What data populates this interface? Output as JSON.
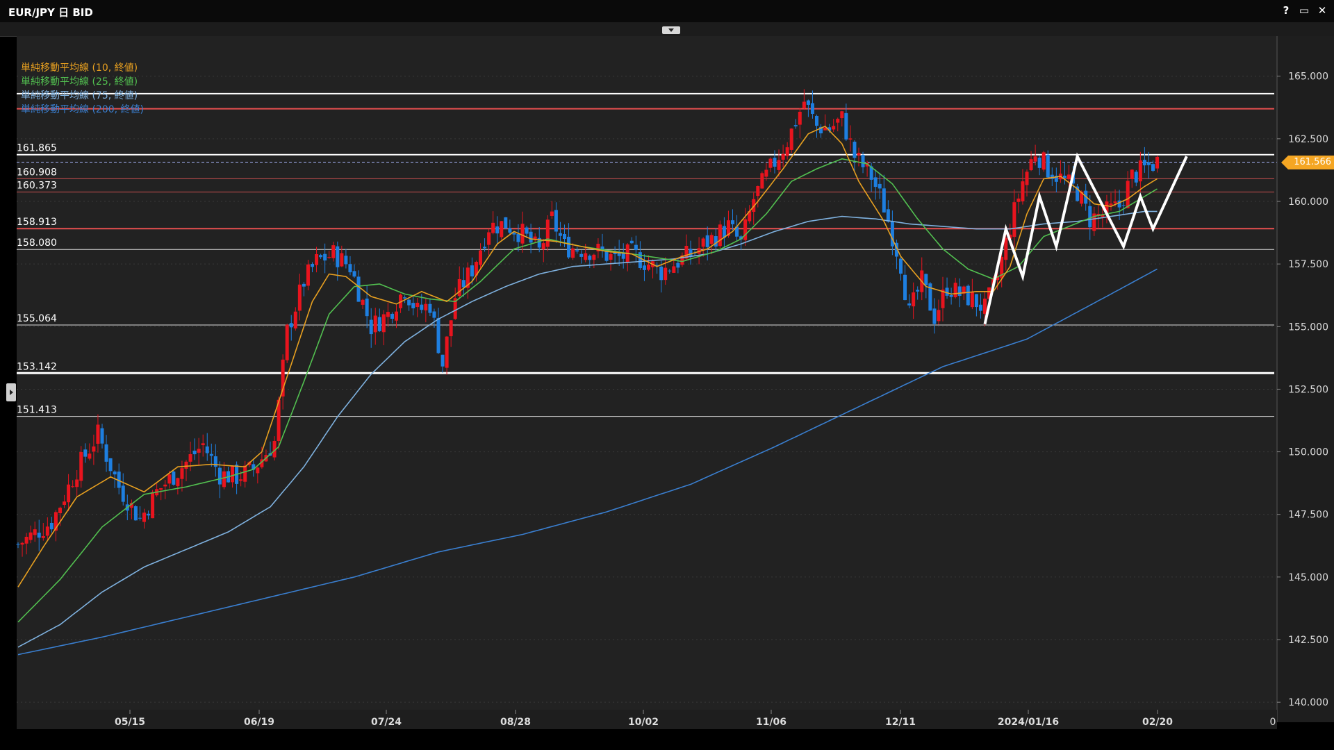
{
  "window": {
    "title": "EUR/JPY 日 BID",
    "help_label": "?",
    "maximize_label": "▭",
    "close_label": "✕"
  },
  "legend": [
    {
      "label": "単純移動平均線 (10, 終値)",
      "color": "#e8a020"
    },
    {
      "label": "単純移動平均線 (25, 終値)",
      "color": "#52c050"
    },
    {
      "label": "単純移動平均線 (75, 終値)",
      "color": "#7fb2e0"
    },
    {
      "label": "単純移動平均線 (200, 終値)",
      "color": "#3a7fd0"
    }
  ],
  "last_price": "161.566",
  "colors": {
    "bg": "#222222",
    "up": "#e8141e",
    "down": "#1e7fe0",
    "ma10": "#e8a020",
    "ma25": "#52c050",
    "ma75": "#7fb2e0",
    "ma200": "#3a7fd0",
    "grid": "#3a3a3a"
  },
  "chart_data": {
    "type": "candlestick",
    "instrument": "EUR/JPY",
    "timeframe": "日",
    "price_type": "BID",
    "ylim": [
      139.7,
      166.6
    ],
    "y_ticks": [
      "140.000",
      "142.500",
      "145.000",
      "147.500",
      "150.000",
      "152.500",
      "155.000",
      "157.500",
      "160.000",
      "162.500",
      "165.000"
    ],
    "x_labels": [
      "05/15",
      "06/19",
      "07/24",
      "08/28",
      "10/02",
      "11/06",
      "12/11",
      "2024/01/16",
      "02/20"
    ],
    "x_axis_extra_label": "0",
    "horizontal_levels": [
      {
        "value": 164.3,
        "label": "",
        "color": "#ffffff",
        "width": 2
      },
      {
        "value": 163.7,
        "label": "",
        "color": "#e85050",
        "width": 2
      },
      {
        "value": 161.865,
        "label": "161.865",
        "color": "#ffffff",
        "width": 2
      },
      {
        "value": 160.908,
        "label": "160.908",
        "color": "#d05050",
        "width": 1
      },
      {
        "value": 160.373,
        "label": "160.373",
        "color": "#d05050",
        "width": 1
      },
      {
        "value": 158.913,
        "label": "158.913",
        "color": "#e85050",
        "width": 2
      },
      {
        "value": 158.08,
        "label": "158.080",
        "color": "#dddddd",
        "width": 1
      },
      {
        "value": 155.064,
        "label": "155.064",
        "color": "#dddddd",
        "width": 1
      },
      {
        "value": 153.142,
        "label": "153.142",
        "color": "#ffffff",
        "width": 3
      },
      {
        "value": 151.413,
        "label": "151.413",
        "color": "#dddddd",
        "width": 1
      }
    ],
    "ohlc_anchors": [
      [
        0,
        146.3
      ],
      [
        8,
        147.2
      ],
      [
        14,
        149.3
      ],
      [
        19,
        150.7
      ],
      [
        24,
        148.6
      ],
      [
        29,
        147.3
      ],
      [
        33,
        148.4
      ],
      [
        39,
        149.4
      ],
      [
        44,
        150.3
      ],
      [
        48,
        149.1
      ],
      [
        52,
        149.0
      ],
      [
        56,
        149.3
      ],
      [
        61,
        150.4
      ],
      [
        64,
        154.8
      ],
      [
        68,
        156.8
      ],
      [
        71,
        157.6
      ],
      [
        75,
        157.9
      ],
      [
        79,
        157.4
      ],
      [
        84,
        155.0
      ],
      [
        88,
        155.5
      ],
      [
        92,
        156.5
      ],
      [
        95,
        155.6
      ],
      [
        98,
        155.9
      ],
      [
        101,
        153.5
      ],
      [
        104,
        156.2
      ],
      [
        108,
        157.3
      ],
      [
        112,
        159.0
      ],
      [
        116,
        159.1
      ],
      [
        120,
        158.7
      ],
      [
        124,
        158.0
      ],
      [
        127,
        159.3
      ],
      [
        130,
        158.2
      ],
      [
        134,
        158.1
      ],
      [
        138,
        158.0
      ],
      [
        142,
        157.7
      ],
      [
        146,
        157.9
      ],
      [
        150,
        157.5
      ],
      [
        153,
        157.2
      ],
      [
        157,
        157.6
      ],
      [
        161,
        158.0
      ],
      [
        165,
        158.5
      ],
      [
        169,
        159.0
      ],
      [
        172,
        158.3
      ],
      [
        175,
        160.1
      ],
      [
        179,
        161.3
      ],
      [
        183,
        162.4
      ],
      [
        187,
        164.0
      ],
      [
        190,
        163.0
      ],
      [
        193,
        162.9
      ],
      [
        196,
        163.3
      ],
      [
        199,
        161.8
      ],
      [
        203,
        161.0
      ],
      [
        206,
        159.8
      ],
      [
        210,
        157.5
      ],
      [
        212,
        155.5
      ],
      [
        215,
        156.8
      ],
      [
        218,
        155.4
      ],
      [
        221,
        156.6
      ],
      [
        224,
        156.3
      ],
      [
        227,
        156.1
      ],
      [
        230,
        155.7
      ],
      [
        233,
        157.0
      ],
      [
        236,
        159.0
      ],
      [
        239,
        160.8
      ],
      [
        242,
        162.0
      ],
      [
        245,
        161.3
      ],
      [
        249,
        160.8
      ],
      [
        252,
        160.4
      ],
      [
        255,
        159.3
      ],
      [
        258,
        159.5
      ],
      [
        262,
        159.8
      ],
      [
        265,
        161.0
      ],
      [
        268,
        161.3
      ],
      [
        271,
        161.6
      ]
    ],
    "ma_anchors": {
      "ma10": [
        [
          0,
          144.6
        ],
        [
          6,
          146.2
        ],
        [
          14,
          148.2
        ],
        [
          22,
          149.0
        ],
        [
          30,
          148.4
        ],
        [
          38,
          149.4
        ],
        [
          46,
          149.5
        ],
        [
          54,
          149.4
        ],
        [
          58,
          150.0
        ],
        [
          64,
          153.0
        ],
        [
          70,
          156.0
        ],
        [
          74,
          157.1
        ],
        [
          78,
          157.0
        ],
        [
          84,
          156.2
        ],
        [
          90,
          155.9
        ],
        [
          96,
          156.4
        ],
        [
          102,
          156.0
        ],
        [
          108,
          156.8
        ],
        [
          114,
          158.3
        ],
        [
          118,
          158.8
        ],
        [
          122,
          158.5
        ],
        [
          128,
          158.4
        ],
        [
          134,
          158.2
        ],
        [
          140,
          158.0
        ],
        [
          146,
          157.9
        ],
        [
          152,
          157.4
        ],
        [
          158,
          157.8
        ],
        [
          164,
          158.1
        ],
        [
          170,
          158.8
        ],
        [
          176,
          160.0
        ],
        [
          182,
          161.3
        ],
        [
          188,
          162.7
        ],
        [
          192,
          163.0
        ],
        [
          196,
          162.3
        ],
        [
          200,
          160.8
        ],
        [
          206,
          159.2
        ],
        [
          210,
          157.8
        ],
        [
          216,
          156.6
        ],
        [
          222,
          156.3
        ],
        [
          228,
          156.4
        ],
        [
          232,
          156.4
        ],
        [
          236,
          157.4
        ],
        [
          240,
          159.5
        ],
        [
          244,
          160.9
        ],
        [
          248,
          161.0
        ],
        [
          252,
          160.5
        ],
        [
          256,
          159.9
        ],
        [
          260,
          159.8
        ],
        [
          264,
          160.1
        ],
        [
          268,
          160.6
        ],
        [
          271,
          160.9
        ]
      ],
      "ma25": [
        [
          0,
          143.2
        ],
        [
          10,
          144.9
        ],
        [
          20,
          147.0
        ],
        [
          30,
          148.3
        ],
        [
          40,
          148.6
        ],
        [
          50,
          149.0
        ],
        [
          56,
          149.3
        ],
        [
          62,
          150.2
        ],
        [
          68,
          152.8
        ],
        [
          74,
          155.5
        ],
        [
          80,
          156.6
        ],
        [
          86,
          156.7
        ],
        [
          92,
          156.3
        ],
        [
          98,
          156.1
        ],
        [
          104,
          156.0
        ],
        [
          110,
          156.8
        ],
        [
          118,
          158.1
        ],
        [
          126,
          158.5
        ],
        [
          134,
          158.2
        ],
        [
          142,
          158.0
        ],
        [
          150,
          157.8
        ],
        [
          158,
          157.6
        ],
        [
          166,
          158.0
        ],
        [
          172,
          158.5
        ],
        [
          178,
          159.5
        ],
        [
          184,
          160.8
        ],
        [
          190,
          161.3
        ],
        [
          196,
          161.7
        ],
        [
          202,
          161.5
        ],
        [
          208,
          160.7
        ],
        [
          214,
          159.3
        ],
        [
          220,
          158.1
        ],
        [
          226,
          157.3
        ],
        [
          232,
          156.9
        ],
        [
          238,
          157.4
        ],
        [
          244,
          158.6
        ],
        [
          250,
          159.0
        ],
        [
          256,
          159.4
        ],
        [
          262,
          159.6
        ],
        [
          268,
          160.2
        ],
        [
          271,
          160.5
        ]
      ],
      "ma75": [
        [
          0,
          142.2
        ],
        [
          10,
          143.1
        ],
        [
          20,
          144.4
        ],
        [
          30,
          145.4
        ],
        [
          40,
          146.1
        ],
        [
          50,
          146.8
        ],
        [
          60,
          147.8
        ],
        [
          68,
          149.4
        ],
        [
          76,
          151.4
        ],
        [
          84,
          153.1
        ],
        [
          92,
          154.4
        ],
        [
          100,
          155.3
        ],
        [
          108,
          156.0
        ],
        [
          116,
          156.6
        ],
        [
          124,
          157.1
        ],
        [
          132,
          157.4
        ],
        [
          140,
          157.5
        ],
        [
          148,
          157.6
        ],
        [
          156,
          157.7
        ],
        [
          164,
          157.9
        ],
        [
          172,
          158.3
        ],
        [
          180,
          158.8
        ],
        [
          188,
          159.2
        ],
        [
          196,
          159.4
        ],
        [
          204,
          159.3
        ],
        [
          212,
          159.1
        ],
        [
          220,
          159.0
        ],
        [
          228,
          158.9
        ],
        [
          236,
          158.9
        ],
        [
          244,
          159.1
        ],
        [
          252,
          159.2
        ],
        [
          260,
          159.4
        ],
        [
          268,
          159.6
        ],
        [
          271,
          159.6
        ]
      ],
      "ma200": [
        [
          0,
          141.9
        ],
        [
          20,
          142.6
        ],
        [
          40,
          143.4
        ],
        [
          60,
          144.2
        ],
        [
          80,
          145.0
        ],
        [
          100,
          146.0
        ],
        [
          120,
          146.7
        ],
        [
          140,
          147.6
        ],
        [
          160,
          148.7
        ],
        [
          180,
          150.2
        ],
        [
          200,
          151.8
        ],
        [
          220,
          153.4
        ],
        [
          240,
          154.5
        ],
        [
          250,
          155.4
        ],
        [
          260,
          156.3
        ],
        [
          271,
          157.3
        ]
      ]
    },
    "zigzag": [
      [
        230,
        155.1
      ],
      [
        235,
        158.9
      ],
      [
        239,
        157.0
      ],
      [
        243,
        160.2
      ],
      [
        247,
        158.2
      ],
      [
        252,
        161.8
      ],
      [
        263,
        158.2
      ],
      [
        267,
        160.2
      ],
      [
        270,
        158.9
      ],
      [
        278,
        161.8
      ]
    ]
  }
}
